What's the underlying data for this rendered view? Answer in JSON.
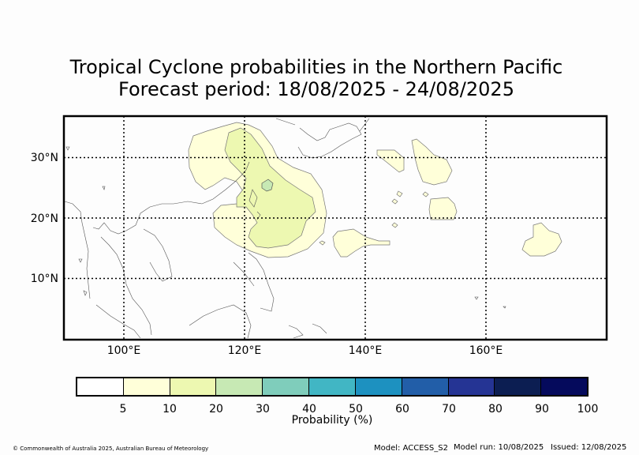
{
  "title_line1": "Tropical Cyclone probabilities in the Northern Pacific",
  "title_line2": "Forecast period: 18/08/2025 - 24/08/2025",
  "map": {
    "lat_labels": [
      "30°N",
      "20°N",
      "10°N"
    ],
    "lon_labels": [
      "100°E",
      "120°E",
      "140°E",
      "160°E"
    ]
  },
  "colorbar": {
    "label": "Probability (%)",
    "ticks": [
      "5",
      "10",
      "20",
      "30",
      "40",
      "50",
      "60",
      "70",
      "80",
      "90",
      "100"
    ],
    "colors": [
      "#ffffff",
      "#ffffd9",
      "#edf8b1",
      "#c7e9b4",
      "#7fcdbb",
      "#41b6c4",
      "#1d91c0",
      "#225ea8",
      "#253494",
      "#0c1e52",
      "#050a5c"
    ]
  },
  "footer": {
    "copyright": "© Commonwealth of Australia 2025, Australian Bureau of Meteorology",
    "model": "Model: ACCESS_S2",
    "model_run": "Model run: 10/08/2025",
    "issued": "Issued: 12/08/2025"
  }
}
